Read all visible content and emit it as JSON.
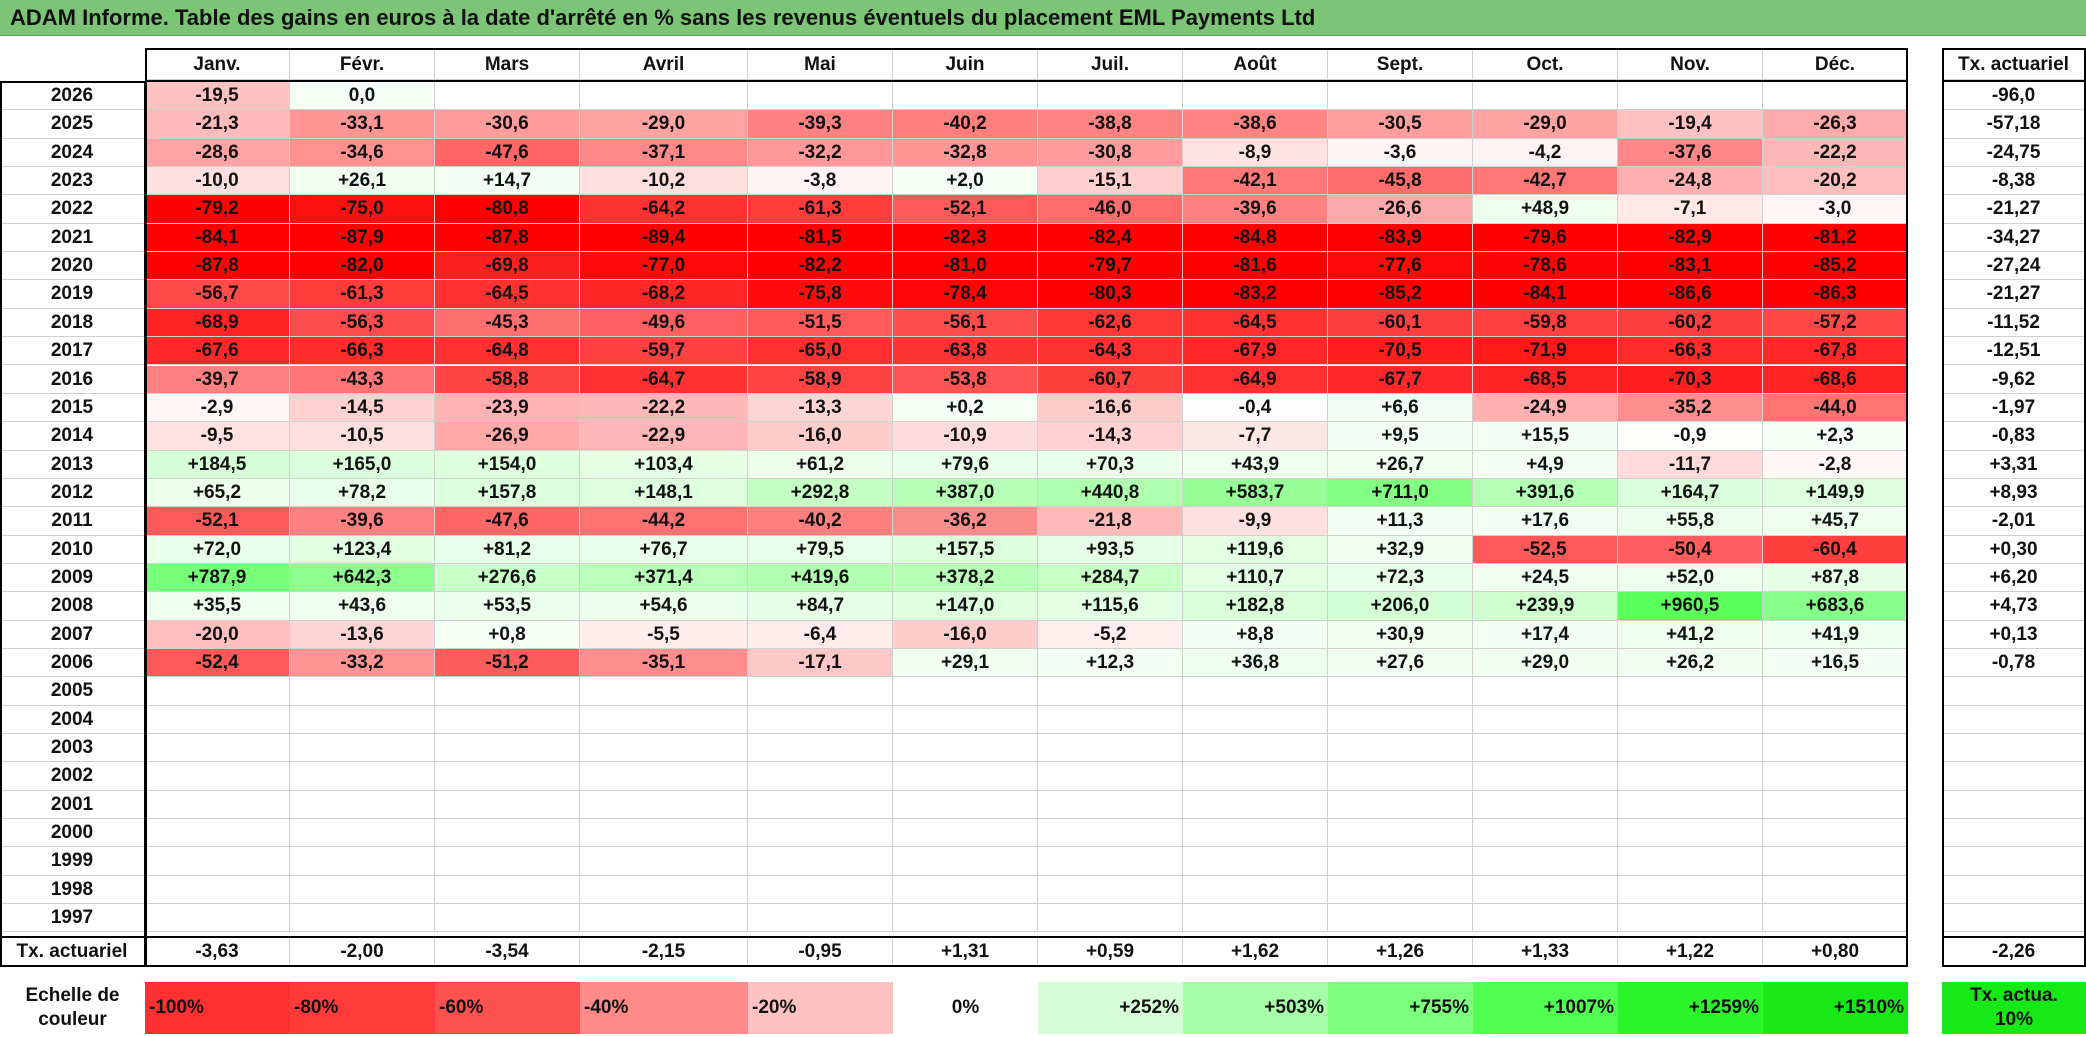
{
  "title": "ADAM Informe. Table des gains en euros à la date d'arrêté en % sans les revenus éventuels du placement EML Payments Ltd",
  "chart_data": {
    "type": "heatmap",
    "title": "ADAM Informe. Table des gains en euros à la date d'arrêté en % sans les revenus éventuels du placement EML Payments Ltd",
    "columns": [
      "Janv.",
      "Févr.",
      "Mars",
      "Avril",
      "Mai",
      "Juin",
      "Juil.",
      "Août",
      "Sept.",
      "Oct.",
      "Nov.",
      "Déc."
    ],
    "annual_column_label": "Tx. actuariel",
    "rows": [
      {
        "year": "2026",
        "values": [
          "-19,5",
          "0,0",
          "",
          "",
          "",
          "",
          "",
          "",
          "",
          "",
          "",
          ""
        ],
        "annual": "-96,0"
      },
      {
        "year": "2025",
        "values": [
          "-21,3",
          "-33,1",
          "-30,6",
          "-29,0",
          "-39,3",
          "-40,2",
          "-38,8",
          "-38,6",
          "-30,5",
          "-29,0",
          "-19,4",
          "-26,3"
        ],
        "annual": "-57,18"
      },
      {
        "year": "2024",
        "values": [
          "-28,6",
          "-34,6",
          "-47,6",
          "-37,1",
          "-32,2",
          "-32,8",
          "-30,8",
          "-8,9",
          "-3,6",
          "-4,2",
          "-37,6",
          "-22,2"
        ],
        "annual": "-24,75"
      },
      {
        "year": "2023",
        "values": [
          "-10,0",
          "+26,1",
          "+14,7",
          "-10,2",
          "-3,8",
          "+2,0",
          "-15,1",
          "-42,1",
          "-45,8",
          "-42,7",
          "-24,8",
          "-20,2"
        ],
        "annual": "-8,38"
      },
      {
        "year": "2022",
        "values": [
          "-79,2",
          "-75,0",
          "-80,8",
          "-64,2",
          "-61,3",
          "-52,1",
          "-46,0",
          "-39,6",
          "-26,6",
          "+48,9",
          "-7,1",
          "-3,0"
        ],
        "annual": "-21,27"
      },
      {
        "year": "2021",
        "values": [
          "-84,1",
          "-87,9",
          "-87,8",
          "-89,4",
          "-81,5",
          "-82,3",
          "-82,4",
          "-84,8",
          "-83,9",
          "-79,6",
          "-82,9",
          "-81,2"
        ],
        "annual": "-34,27"
      },
      {
        "year": "2020",
        "values": [
          "-87,8",
          "-82,0",
          "-69,8",
          "-77,0",
          "-82,2",
          "-81,0",
          "-79,7",
          "-81,6",
          "-77,6",
          "-78,6",
          "-83,1",
          "-85,2"
        ],
        "annual": "-27,24"
      },
      {
        "year": "2019",
        "values": [
          "-56,7",
          "-61,3",
          "-64,5",
          "-68,2",
          "-75,8",
          "-78,4",
          "-80,3",
          "-83,2",
          "-85,2",
          "-84,1",
          "-86,6",
          "-86,3"
        ],
        "annual": "-21,27"
      },
      {
        "year": "2018",
        "values": [
          "-68,9",
          "-56,3",
          "-45,3",
          "-49,6",
          "-51,5",
          "-56,1",
          "-62,6",
          "-64,5",
          "-60,1",
          "-59,8",
          "-60,2",
          "-57,2"
        ],
        "annual": "-11,52"
      },
      {
        "year": "2017",
        "values": [
          "-67,6",
          "-66,3",
          "-64,8",
          "-59,7",
          "-65,0",
          "-63,8",
          "-64,3",
          "-67,9",
          "-70,5",
          "-71,9",
          "-66,3",
          "-67,8"
        ],
        "annual": "-12,51"
      },
      {
        "year": "2016",
        "values": [
          "-39,7",
          "-43,3",
          "-58,8",
          "-64,7",
          "-58,9",
          "-53,8",
          "-60,7",
          "-64,9",
          "-67,7",
          "-68,5",
          "-70,3",
          "-68,6"
        ],
        "annual": "-9,62"
      },
      {
        "year": "2015",
        "values": [
          "-2,9",
          "-14,5",
          "-23,9",
          "-22,2",
          "-13,3",
          "+0,2",
          "-16,6",
          "-0,4",
          "+6,6",
          "-24,9",
          "-35,2",
          "-44,0"
        ],
        "annual": "-1,97"
      },
      {
        "year": "2014",
        "values": [
          "-9,5",
          "-10,5",
          "-26,9",
          "-22,9",
          "-16,0",
          "-10,9",
          "-14,3",
          "-7,7",
          "+9,5",
          "+15,5",
          "-0,9",
          "+2,3"
        ],
        "annual": "-0,83"
      },
      {
        "year": "2013",
        "values": [
          "+184,5",
          "+165,0",
          "+154,0",
          "+103,4",
          "+61,2",
          "+79,6",
          "+70,3",
          "+43,9",
          "+26,7",
          "+4,9",
          "-11,7",
          "-2,8"
        ],
        "annual": "+3,31"
      },
      {
        "year": "2012",
        "values": [
          "+65,2",
          "+78,2",
          "+157,8",
          "+148,1",
          "+292,8",
          "+387,0",
          "+440,8",
          "+583,7",
          "+711,0",
          "+391,6",
          "+164,7",
          "+149,9"
        ],
        "annual": "+8,93"
      },
      {
        "year": "2011",
        "values": [
          "-52,1",
          "-39,6",
          "-47,6",
          "-44,2",
          "-40,2",
          "-36,2",
          "-21,8",
          "-9,9",
          "+11,3",
          "+17,6",
          "+55,8",
          "+45,7"
        ],
        "annual": "-2,01"
      },
      {
        "year": "2010",
        "values": [
          "+72,0",
          "+123,4",
          "+81,2",
          "+76,7",
          "+79,5",
          "+157,5",
          "+93,5",
          "+119,6",
          "+32,9",
          "-52,5",
          "-50,4",
          "-60,4"
        ],
        "annual": "+0,30"
      },
      {
        "year": "2009",
        "values": [
          "+787,9",
          "+642,3",
          "+276,6",
          "+371,4",
          "+419,6",
          "+378,2",
          "+284,7",
          "+110,7",
          "+72,3",
          "+24,5",
          "+52,0",
          "+87,8"
        ],
        "annual": "+6,20"
      },
      {
        "year": "2008",
        "values": [
          "+35,5",
          "+43,6",
          "+53,5",
          "+54,6",
          "+84,7",
          "+147,0",
          "+115,6",
          "+182,8",
          "+206,0",
          "+239,9",
          "+960,5",
          "+683,6"
        ],
        "annual": "+4,73"
      },
      {
        "year": "2007",
        "values": [
          "-20,0",
          "-13,6",
          "+0,8",
          "-5,5",
          "-6,4",
          "-16,0",
          "-5,2",
          "+8,8",
          "+30,9",
          "+17,4",
          "+41,2",
          "+41,9"
        ],
        "annual": "+0,13"
      },
      {
        "year": "2006",
        "values": [
          "-52,4",
          "-33,2",
          "-51,2",
          "-35,1",
          "-17,1",
          "+29,1",
          "+12,3",
          "+36,8",
          "+27,6",
          "+29,0",
          "+26,2",
          "+16,5"
        ],
        "annual": "-0,78"
      },
      {
        "year": "2005",
        "values": [
          "",
          "",
          "",
          "",
          "",
          "",
          "",
          "",
          "",
          "",
          "",
          ""
        ],
        "annual": ""
      },
      {
        "year": "2004",
        "values": [
          "",
          "",
          "",
          "",
          "",
          "",
          "",
          "",
          "",
          "",
          "",
          ""
        ],
        "annual": ""
      },
      {
        "year": "2003",
        "values": [
          "",
          "",
          "",
          "",
          "",
          "",
          "",
          "",
          "",
          "",
          "",
          ""
        ],
        "annual": ""
      },
      {
        "year": "2002",
        "values": [
          "",
          "",
          "",
          "",
          "",
          "",
          "",
          "",
          "",
          "",
          "",
          ""
        ],
        "annual": ""
      },
      {
        "year": "2001",
        "values": [
          "",
          "",
          "",
          "",
          "",
          "",
          "",
          "",
          "",
          "",
          "",
          ""
        ],
        "annual": ""
      },
      {
        "year": "2000",
        "values": [
          "",
          "",
          "",
          "",
          "",
          "",
          "",
          "",
          "",
          "",
          "",
          ""
        ],
        "annual": ""
      },
      {
        "year": "1999",
        "values": [
          "",
          "",
          "",
          "",
          "",
          "",
          "",
          "",
          "",
          "",
          "",
          ""
        ],
        "annual": ""
      },
      {
        "year": "1998",
        "values": [
          "",
          "",
          "",
          "",
          "",
          "",
          "",
          "",
          "",
          "",
          "",
          ""
        ],
        "annual": ""
      },
      {
        "year": "1997",
        "values": [
          "",
          "",
          "",
          "",
          "",
          "",
          "",
          "",
          "",
          "",
          "",
          ""
        ],
        "annual": ""
      }
    ],
    "summary_row": {
      "label": "Tx. actuariel",
      "values": [
        "-3,63",
        "-2,00",
        "-3,54",
        "-2,15",
        "-0,95",
        "+1,31",
        "+0,59",
        "+1,62",
        "+1,26",
        "+1,33",
        "+1,22",
        "+0,80"
      ],
      "annual": "-2,26"
    },
    "color_scale": {
      "label": "Echelle de couleur",
      "negative_color": "#ff0000",
      "positive_color": "#22e822",
      "steps": [
        {
          "label": "-100%",
          "color": "#ff3030"
        },
        {
          "label": "-80%",
          "color": "#ff3b3b"
        },
        {
          "label": "-60%",
          "color": "#ff5050"
        },
        {
          "label": "-40%",
          "color": "#ff8a8a"
        },
        {
          "label": "-20%",
          "color": "#ffc2c2"
        },
        {
          "label": "0%",
          "color": "#ffffff"
        },
        {
          "label": "+252%",
          "color": "#d6ffd6"
        },
        {
          "label": "+503%",
          "color": "#a6ffa6"
        },
        {
          "label": "+755%",
          "color": "#7cff7c"
        },
        {
          "label": "+1007%",
          "color": "#50ff50"
        },
        {
          "label": "+1259%",
          "color": "#2cf52c"
        },
        {
          "label": "+1510%",
          "color": "#18e818"
        }
      ],
      "annual_box": "Tx. actua. 10%",
      "annual_box_color": "#17e817"
    }
  }
}
